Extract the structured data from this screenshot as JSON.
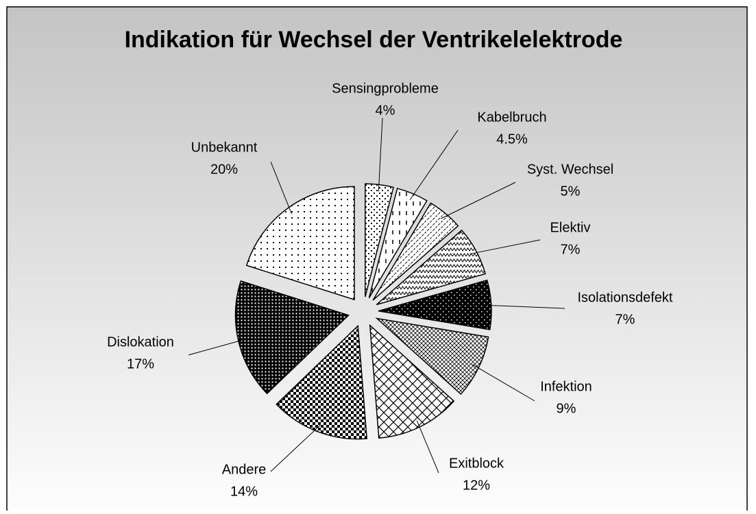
{
  "chart_data": {
    "type": "pie",
    "title": "Indikation für Wechsel der Ventrikelelektrode",
    "categories": [
      "Sensingprobleme",
      "Kabelbruch",
      "Syst. Wechsel",
      "Elektiv",
      "Isolationsdefekt",
      "Infektion",
      "Exitblock",
      "Andere",
      "Dislokation",
      "Unbekannt"
    ],
    "values": [
      4,
      4.5,
      5,
      7,
      7,
      9,
      12,
      14,
      17,
      20
    ],
    "value_labels": [
      "4%",
      "4.5%",
      "5%",
      "7%",
      "7%",
      "9%",
      "12%",
      "14%",
      "17%",
      "20%"
    ]
  }
}
